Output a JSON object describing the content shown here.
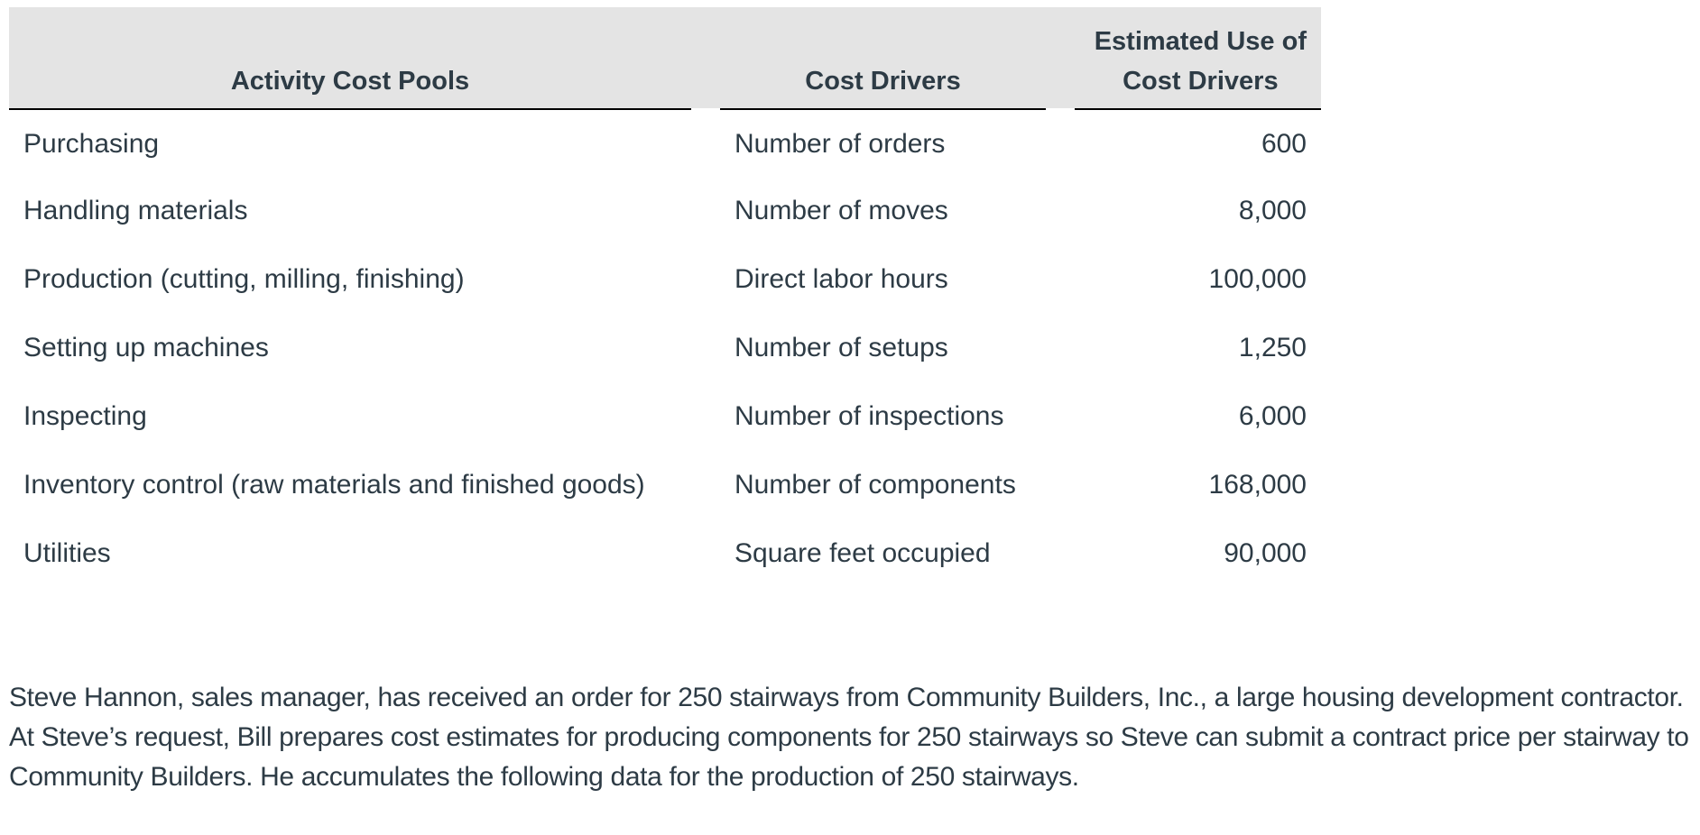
{
  "table": {
    "headers": {
      "activity_cost_pools": "Activity Cost Pools",
      "cost_drivers": "Cost Drivers",
      "estimated_use_line1": "Estimated Use of",
      "estimated_use_line2": "Cost Drivers"
    },
    "rows": [
      {
        "pool": "Purchasing",
        "driver": "Number of orders",
        "estimated_use": "600"
      },
      {
        "pool": "Handling materials",
        "driver": "Number of moves",
        "estimated_use": "8,000"
      },
      {
        "pool": "Production (cutting, milling, finishing)",
        "driver": "Direct labor hours",
        "estimated_use": "100,000"
      },
      {
        "pool": "Setting up machines",
        "driver": "Number of setups",
        "estimated_use": "1,250"
      },
      {
        "pool": "Inspecting",
        "driver": "Number of inspections",
        "estimated_use": "6,000"
      },
      {
        "pool": "Inventory control (raw materials and finished goods)",
        "driver": "Number of components",
        "estimated_use": "168,000"
      },
      {
        "pool": "Utilities",
        "driver": "Square feet occupied",
        "estimated_use": "90,000"
      }
    ]
  },
  "paragraph": {
    "text": "Steve Hannon, sales manager, has received an order for 250 stairways from Community Builders, Inc., a large housing development contractor. At Steve’s request, Bill prepares cost estimates for producing components for 250 stairways so Steve can submit a contract price per stairway to Community Builders. He accumulates the following data for the production of 250 stairways."
  },
  "colors": {
    "text": "#2d3b45",
    "header_background": "#e4e4e4",
    "header_rule": "#000000"
  }
}
